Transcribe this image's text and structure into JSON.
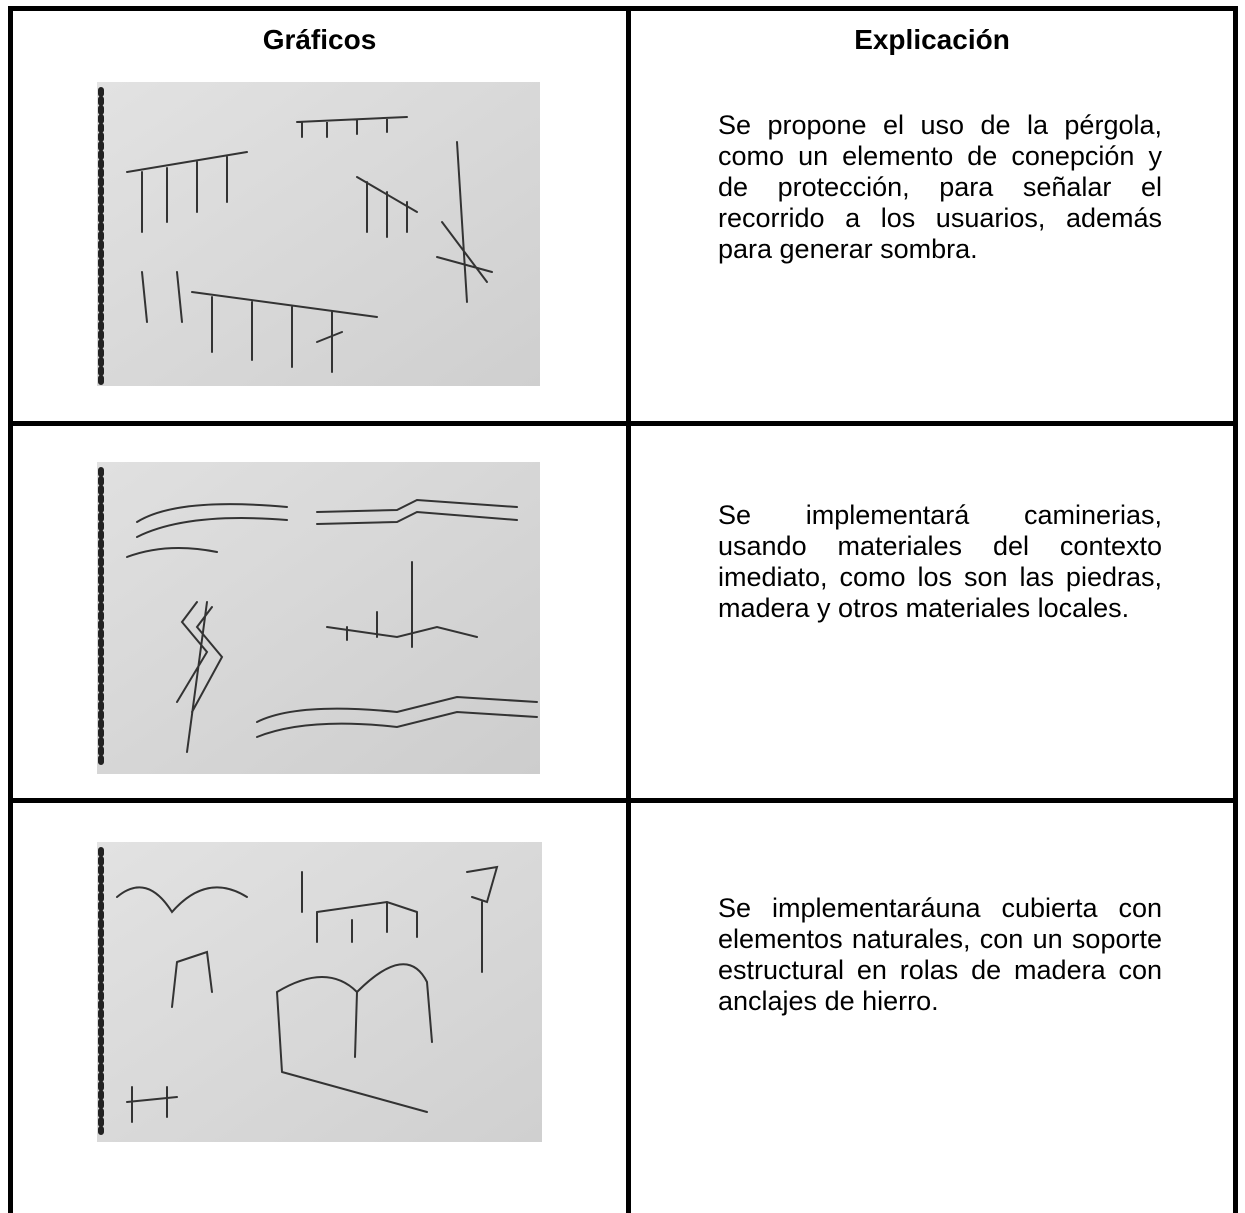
{
  "table": {
    "headers": [
      "Gráficos",
      "Explicación"
    ],
    "rows": [
      {
        "explanation": "Se propone el uso de la pérgola, como un elemento de conepción y de protección, para señalar el recorrido a los usuarios, además para generar sombra."
      },
      {
        "explanation": "Se implementará caminerias, usando materiales del contexto imediato, como los son las piedras, madera y otros materiales locales."
      },
      {
        "explanation": "Se implementaráuna cubierta con elementos naturales, con un soporte estructural en rolas de madera con anclajes de hierro."
      }
    ]
  }
}
